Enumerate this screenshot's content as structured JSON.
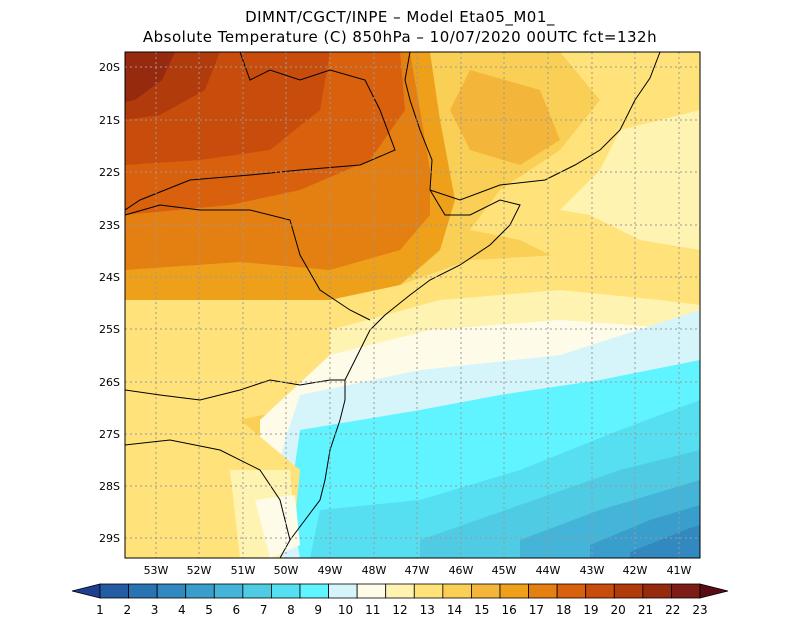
{
  "header": {
    "line1": "DIMNT/CGCT/INPE –  Model Eta05_M01_",
    "line2": "Absolute Temperature (C) 850hPa –  10/07/2020 00UTC fct=132h"
  },
  "map": {
    "variable": "Absolute Temperature (C)",
    "level": "850hPa",
    "lat_labels": [
      "20S",
      "21S",
      "22S",
      "23S",
      "24S",
      "25S",
      "26S",
      "27S",
      "28S",
      "29S"
    ],
    "lon_labels": [
      "53W",
      "52W",
      "51W",
      "50W",
      "49W",
      "48W",
      "47W",
      "46W",
      "45W",
      "44W",
      "43W",
      "42W",
      "41W"
    ]
  },
  "colorbar": {
    "labels": [
      "1",
      "2",
      "3",
      "4",
      "5",
      "6",
      "7",
      "8",
      "9",
      "10",
      "11",
      "12",
      "13",
      "14",
      "15",
      "16",
      "17",
      "18",
      "19",
      "20",
      "21",
      "22",
      "23"
    ],
    "colors": [
      "#1e3f8f",
      "#245ca3",
      "#2a73b3",
      "#3189c0",
      "#3a9ecc",
      "#44b4d8",
      "#4fcbe3",
      "#55dff0",
      "#5ff4ff",
      "#d6f5fb",
      "#fffbe9",
      "#fff3b1",
      "#ffe37a",
      "#f9cf56",
      "#f3b63a",
      "#eea01b",
      "#e47f12",
      "#d9600d",
      "#c84d0c",
      "#b23b0c",
      "#962a0e",
      "#7e1d18",
      "#5a0b13"
    ]
  }
}
